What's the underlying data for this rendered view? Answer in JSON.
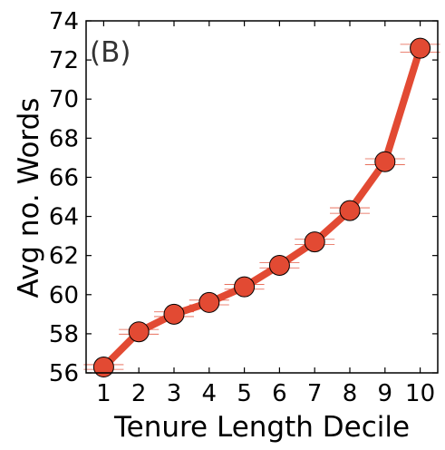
{
  "chart_data": {
    "type": "line",
    "panel_label": "(B)",
    "xlabel": "Tenure Length Decile",
    "ylabel": "Avg no. Words",
    "x": [
      1,
      2,
      3,
      4,
      5,
      6,
      7,
      8,
      9,
      10
    ],
    "x_tick_labels": [
      "1",
      "2",
      "3",
      "4",
      "5",
      "6",
      "7",
      "8",
      "9",
      "10"
    ],
    "y_ticks": [
      56,
      58,
      60,
      62,
      64,
      66,
      68,
      70,
      72,
      74
    ],
    "y_tick_labels": [
      "56",
      "58",
      "60",
      "62",
      "64",
      "66",
      "68",
      "70",
      "72",
      "74"
    ],
    "xlim": [
      0.5,
      10.5
    ],
    "ylim": [
      56,
      74
    ],
    "grid": false,
    "series": [
      {
        "values": [
          56.3,
          58.1,
          59.0,
          59.6,
          60.4,
          61.5,
          62.7,
          64.3,
          66.8,
          72.6
        ],
        "error": [
          0.12,
          0.12,
          0.12,
          0.12,
          0.12,
          0.13,
          0.13,
          0.14,
          0.15,
          0.2
        ],
        "color": "#e24a33",
        "marker_edge_color": "#000000"
      }
    ]
  }
}
